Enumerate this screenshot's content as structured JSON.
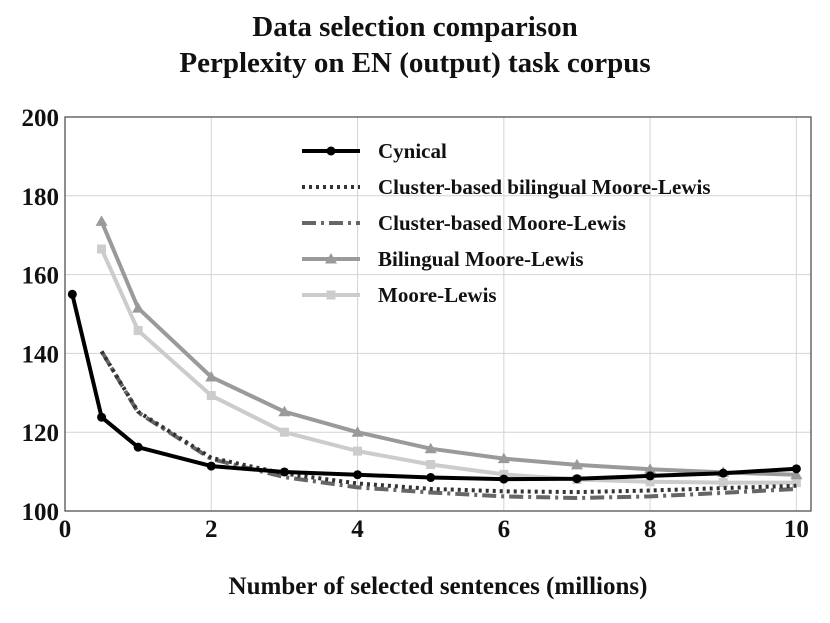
{
  "chart_data": {
    "type": "line",
    "title": [
      "Data selection comparison",
      "Perplexity on EN (output) task corpus"
    ],
    "xlabel": "Number of selected sentences (millions)",
    "ylabel": "",
    "xlim": [
      0,
      10
    ],
    "ylim": [
      100,
      200
    ],
    "xticks": [
      0,
      2,
      4,
      6,
      8,
      10
    ],
    "yticks": [
      100,
      120,
      140,
      160,
      180,
      200
    ],
    "grid": true,
    "legend_position": "top-right",
    "series": [
      {
        "name": "Cynical",
        "color": "#000000",
        "line_style": "solid",
        "marker": "circle",
        "x": [
          0.1,
          0.5,
          1,
          2,
          3,
          4,
          5,
          6,
          7,
          8,
          9,
          10
        ],
        "y": [
          155,
          123.8,
          116.2,
          111.4,
          109.9,
          109.2,
          108.5,
          108.1,
          108.2,
          108.9,
          109.6,
          110.7
        ]
      },
      {
        "name": "Cluster-based bilingual Moore-Lewis",
        "color": "#333333",
        "line_style": "dotted",
        "marker": "none",
        "x": [
          0.5,
          1,
          2,
          3,
          4,
          5,
          6,
          7,
          8,
          9,
          10
        ],
        "y": [
          140.5,
          125.2,
          113.5,
          109.5,
          107.0,
          105.6,
          105.0,
          104.8,
          105.2,
          105.8,
          106.4
        ]
      },
      {
        "name": "Cluster-based Moore-Lewis",
        "color": "#666666",
        "line_style": "dashdot",
        "marker": "none",
        "x": [
          0.5,
          1,
          2,
          3,
          4,
          5,
          6,
          7,
          8,
          9,
          10
        ],
        "y": [
          140.5,
          125.0,
          113.2,
          108.6,
          106.0,
          104.7,
          103.7,
          103.3,
          103.7,
          104.6,
          105.6
        ]
      },
      {
        "name": "Bilingual Moore-Lewis",
        "color": "#9a9a9a",
        "line_style": "solid",
        "marker": "triangle",
        "x": [
          0.5,
          1,
          2,
          3,
          4,
          5,
          6,
          7,
          8,
          9,
          10
        ],
        "y": [
          173.5,
          151.5,
          134.0,
          125.2,
          120.0,
          115.8,
          113.3,
          111.7,
          110.6,
          109.8,
          109.2
        ]
      },
      {
        "name": "Moore-Lewis",
        "color": "#cccccc",
        "line_style": "solid",
        "marker": "square",
        "x": [
          0.5,
          1,
          2,
          3,
          4,
          5,
          6,
          7,
          8,
          9,
          10
        ],
        "y": [
          166.5,
          145.8,
          129.3,
          120.0,
          115.2,
          111.8,
          109.3,
          108.0,
          107.4,
          107.2,
          107.2
        ]
      }
    ]
  }
}
